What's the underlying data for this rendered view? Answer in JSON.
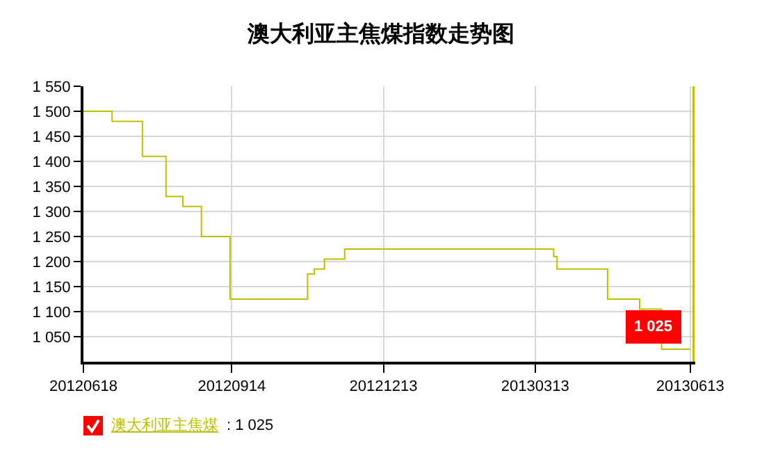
{
  "chart_data": {
    "type": "step",
    "title": "澳大利亚主焦煤指数走势图",
    "x": [
      "2012-06-18",
      "2012-07-05",
      "2012-07-23",
      "2012-08-06",
      "2012-08-16",
      "2012-08-27",
      "2012-09-13",
      "2012-10-29",
      "2012-11-02",
      "2012-11-08",
      "2012-11-20",
      "2013-03-24",
      "2013-03-26",
      "2013-04-25",
      "2013-05-14",
      "2013-05-27",
      "2013-06-13"
    ],
    "series": [
      {
        "name": "澳大利亚主焦煤",
        "color": "#bfbf00",
        "values": [
          1500,
          1480,
          1410,
          1330,
          1310,
          1250,
          1125,
          1175,
          1185,
          1205,
          1225,
          1210,
          1185,
          1125,
          1105,
          1025,
          1025
        ]
      }
    ],
    "xlim": [
      "2012-06-18",
      "2013-06-16"
    ],
    "xticks": [
      {
        "value": "2012-06-18",
        "label": "20120618"
      },
      {
        "value": "2012-09-14",
        "label": "20120914"
      },
      {
        "value": "2012-12-13",
        "label": "20121213"
      },
      {
        "value": "2013-03-13",
        "label": "20130313"
      },
      {
        "value": "2013-06-13",
        "label": "20130613"
      }
    ],
    "ylim": [
      1000,
      1550
    ],
    "yticks": [
      {
        "value": 1050,
        "label": "1 050"
      },
      {
        "value": 1100,
        "label": "1 100"
      },
      {
        "value": 1150,
        "label": "1 150"
      },
      {
        "value": 1200,
        "label": "1 200"
      },
      {
        "value": 1250,
        "label": "1 250"
      },
      {
        "value": 1300,
        "label": "1 300"
      },
      {
        "value": 1350,
        "label": "1 350"
      },
      {
        "value": 1400,
        "label": "1 400"
      },
      {
        "value": 1450,
        "label": "1 450"
      },
      {
        "value": 1500,
        "label": "1 500"
      },
      {
        "value": 1550,
        "label": "1 550"
      }
    ],
    "ref_lines": [
      {
        "axis": "x",
        "value": "2013-06-15",
        "label": null,
        "color": "#bfbf00"
      }
    ],
    "annotations": [
      {
        "text": "1 025",
        "x": "2013-06-13",
        "y": 1025
      },
      ": 1 025"
    ],
    "grid": true,
    "legend": "bottom left",
    "marker": "none",
    "line_style": "solid"
  }
}
